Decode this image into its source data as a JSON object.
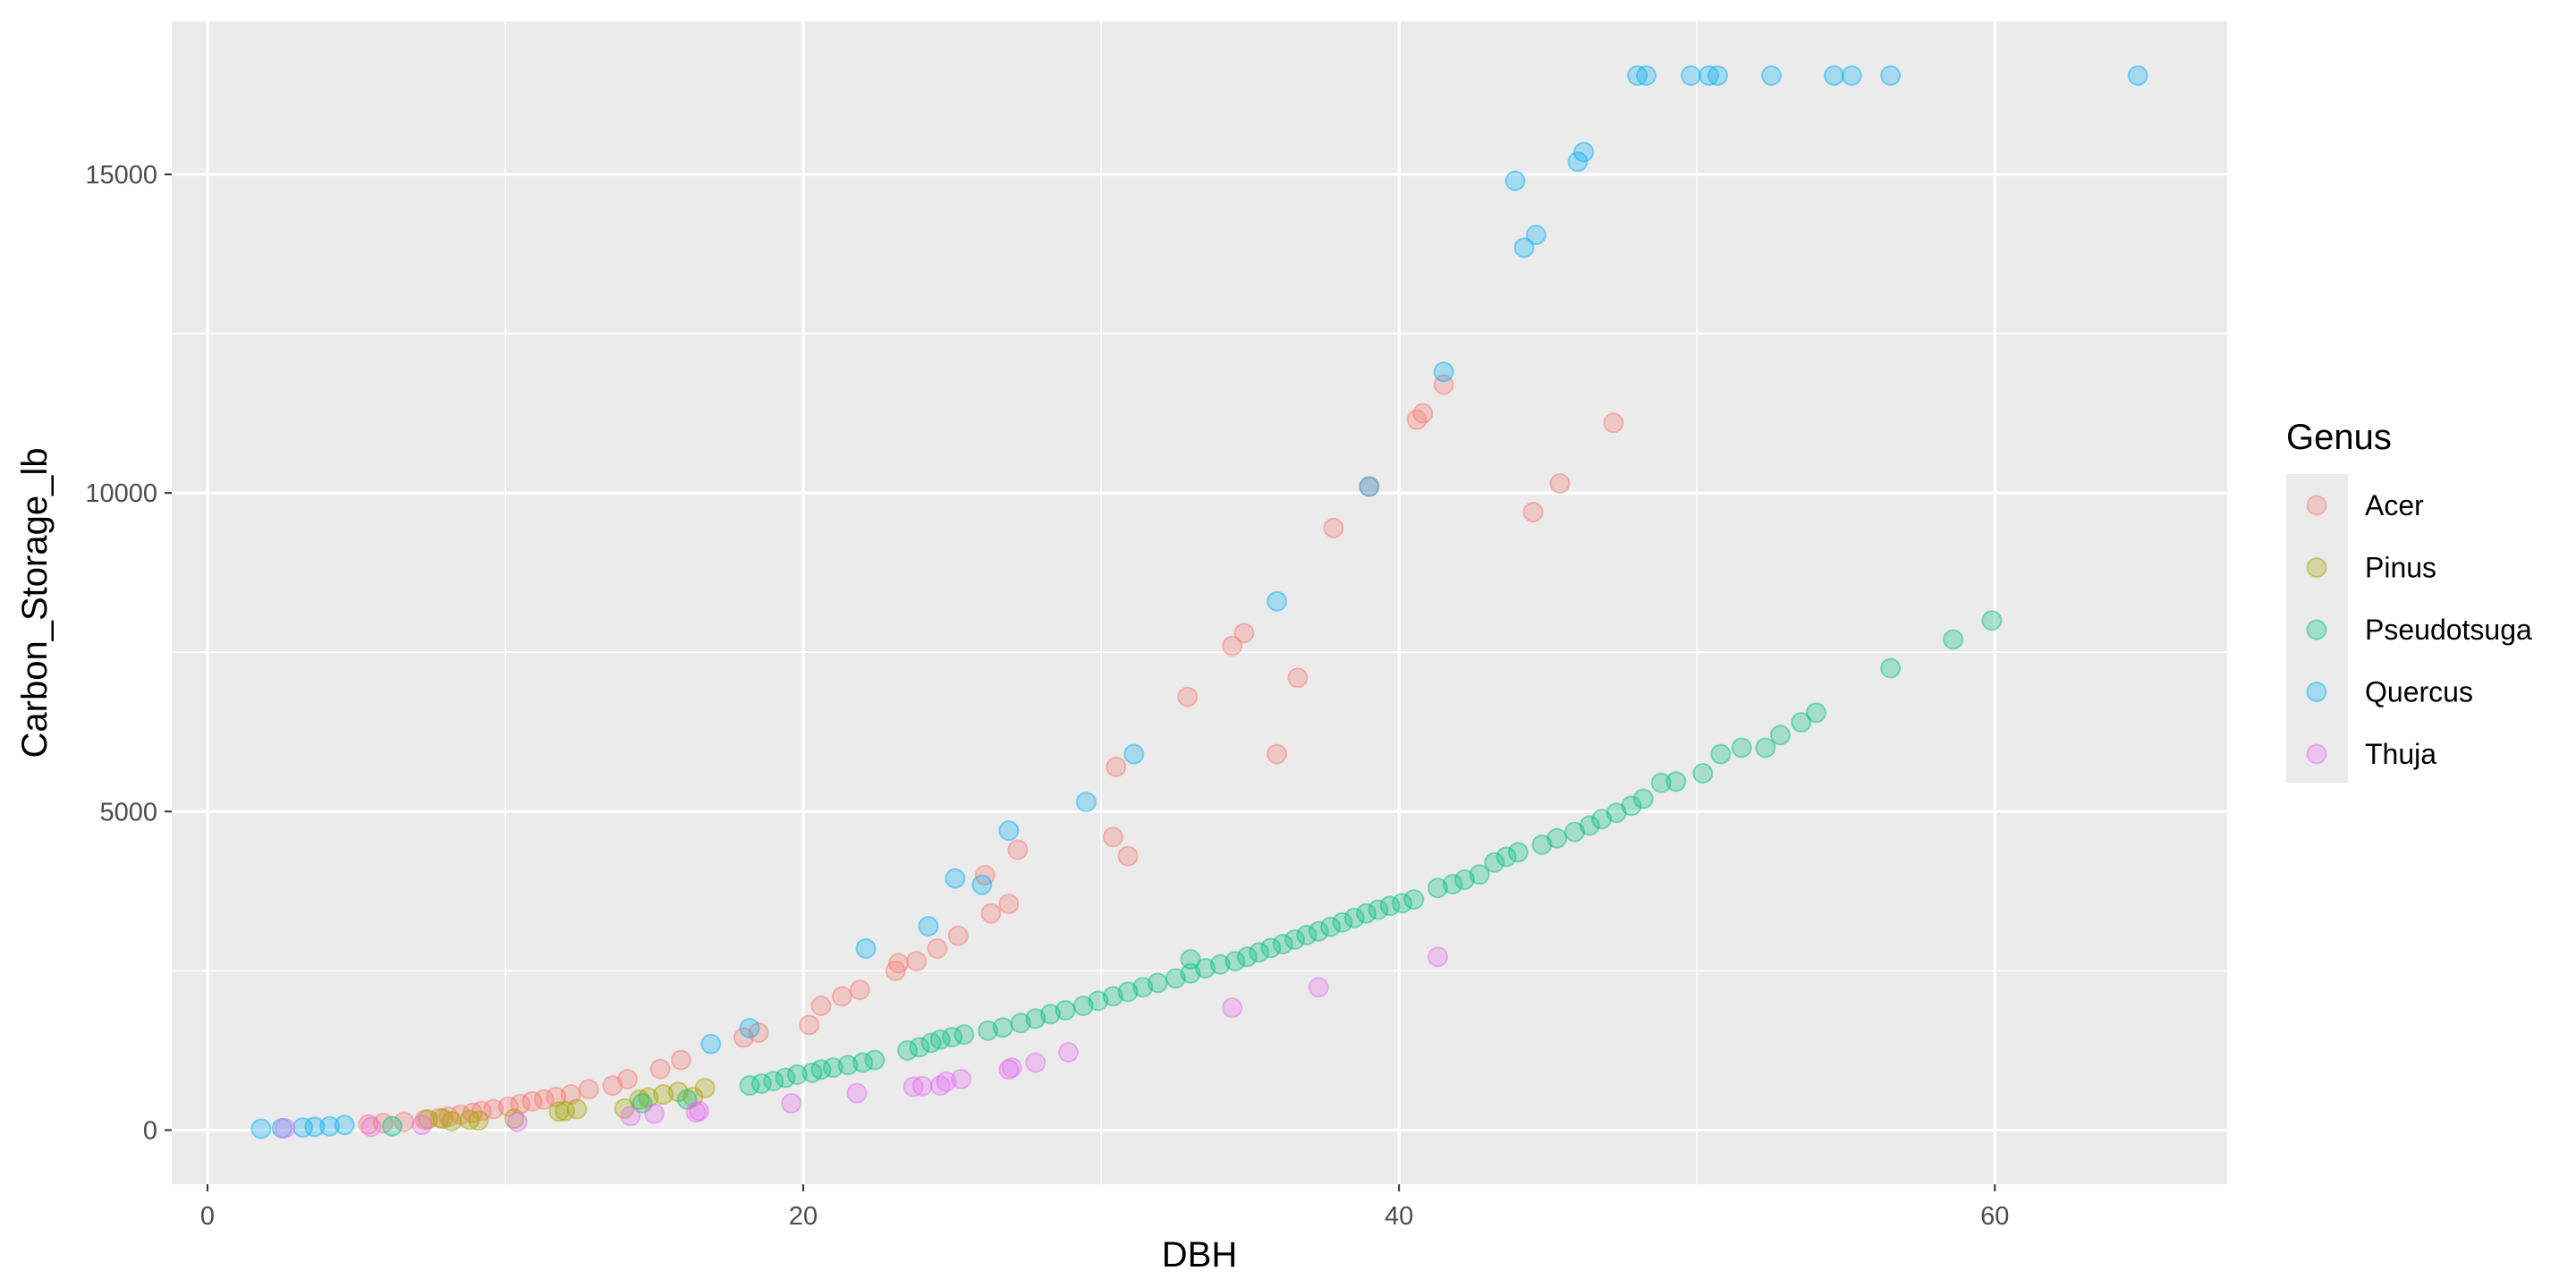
{
  "chart_data": {
    "type": "scatter",
    "xlabel": "DBH",
    "ylabel": "Carbon_Storage_lb",
    "xlim": [
      -1.2,
      67.8
    ],
    "ylim": [
      -850,
      17400
    ],
    "x_ticks": [
      0,
      20,
      40,
      60
    ],
    "y_ticks": [
      0,
      5000,
      10000,
      15000
    ],
    "x_tick_labels": [
      "0",
      "20",
      "40",
      "60"
    ],
    "y_tick_labels": [
      "0",
      "5000",
      "10000",
      "15000"
    ],
    "grid": true,
    "legend_position": "right",
    "legend_title": "Genus",
    "series": [
      {
        "name": "Acer",
        "color": "#F8766D",
        "points": [
          [
            5.4,
            90
          ],
          [
            5.9,
            110
          ],
          [
            6.6,
            130
          ],
          [
            7.3,
            160
          ],
          [
            7.8,
            190
          ],
          [
            8.1,
            210
          ],
          [
            8.5,
            240
          ],
          [
            8.9,
            270
          ],
          [
            9.2,
            300
          ],
          [
            9.6,
            330
          ],
          [
            10.1,
            370
          ],
          [
            10.5,
            410
          ],
          [
            10.9,
            450
          ],
          [
            11.3,
            480
          ],
          [
            11.7,
            520
          ],
          [
            12.2,
            560
          ],
          [
            12.8,
            640
          ],
          [
            13.6,
            700
          ],
          [
            14.1,
            800
          ],
          [
            15.2,
            960
          ],
          [
            15.9,
            1100
          ],
          [
            18.0,
            1450
          ],
          [
            18.5,
            1530
          ],
          [
            20.2,
            1650
          ],
          [
            20.6,
            1950
          ],
          [
            21.3,
            2100
          ],
          [
            21.9,
            2200
          ],
          [
            23.1,
            2500
          ],
          [
            23.2,
            2620
          ],
          [
            23.8,
            2650
          ],
          [
            24.5,
            2850
          ],
          [
            25.2,
            3050
          ],
          [
            26.3,
            3400
          ],
          [
            26.1,
            4000
          ],
          [
            26.9,
            3550
          ],
          [
            27.2,
            4400
          ],
          [
            30.4,
            4600
          ],
          [
            30.9,
            4300
          ],
          [
            30.5,
            5700
          ],
          [
            32.9,
            6800
          ],
          [
            34.4,
            7600
          ],
          [
            34.8,
            7800
          ],
          [
            35.9,
            5900
          ],
          [
            36.6,
            7100
          ],
          [
            37.8,
            9450
          ],
          [
            39.0,
            10100
          ],
          [
            40.6,
            11150
          ],
          [
            40.8,
            11250
          ],
          [
            41.5,
            11700
          ],
          [
            44.5,
            9700
          ],
          [
            45.4,
            10150
          ],
          [
            47.2,
            11100
          ]
        ]
      },
      {
        "name": "Pinus",
        "color": "#A3A500",
        "points": [
          [
            7.4,
            170
          ],
          [
            7.9,
            180
          ],
          [
            8.2,
            140
          ],
          [
            8.8,
            160
          ],
          [
            9.1,
            150
          ],
          [
            10.3,
            180
          ],
          [
            11.8,
            290
          ],
          [
            12.0,
            300
          ],
          [
            12.4,
            330
          ],
          [
            14.0,
            340
          ],
          [
            14.5,
            480
          ],
          [
            14.8,
            510
          ],
          [
            15.3,
            560
          ],
          [
            15.8,
            600
          ],
          [
            16.3,
            520
          ],
          [
            16.7,
            660
          ]
        ]
      },
      {
        "name": "Pseudotsuga",
        "color": "#00BF7D",
        "points": [
          [
            6.2,
            60
          ],
          [
            14.6,
            420
          ],
          [
            16.1,
            480
          ],
          [
            18.2,
            700
          ],
          [
            18.6,
            730
          ],
          [
            19.0,
            770
          ],
          [
            19.4,
            820
          ],
          [
            19.8,
            870
          ],
          [
            20.3,
            900
          ],
          [
            20.6,
            950
          ],
          [
            21.0,
            980
          ],
          [
            21.5,
            1020
          ],
          [
            22.0,
            1060
          ],
          [
            22.4,
            1100
          ],
          [
            23.5,
            1250
          ],
          [
            23.9,
            1300
          ],
          [
            24.3,
            1370
          ],
          [
            24.6,
            1420
          ],
          [
            25.0,
            1460
          ],
          [
            25.4,
            1500
          ],
          [
            26.2,
            1560
          ],
          [
            26.7,
            1610
          ],
          [
            27.3,
            1680
          ],
          [
            27.8,
            1750
          ],
          [
            28.3,
            1820
          ],
          [
            28.8,
            1880
          ],
          [
            29.4,
            1950
          ],
          [
            29.9,
            2030
          ],
          [
            30.4,
            2100
          ],
          [
            30.9,
            2170
          ],
          [
            31.4,
            2240
          ],
          [
            31.9,
            2310
          ],
          [
            32.5,
            2380
          ],
          [
            33.0,
            2460
          ],
          [
            33.5,
            2540
          ],
          [
            34.0,
            2600
          ],
          [
            34.5,
            2650
          ],
          [
            34.9,
            2720
          ],
          [
            35.3,
            2790
          ],
          [
            35.7,
            2860
          ],
          [
            36.1,
            2920
          ],
          [
            36.5,
            2990
          ],
          [
            36.9,
            3060
          ],
          [
            37.3,
            3120
          ],
          [
            37.7,
            3190
          ],
          [
            38.1,
            3260
          ],
          [
            38.5,
            3330
          ],
          [
            38.9,
            3400
          ],
          [
            39.3,
            3460
          ],
          [
            39.7,
            3520
          ],
          [
            40.1,
            3560
          ],
          [
            40.5,
            3620
          ],
          [
            41.3,
            3800
          ],
          [
            41.8,
            3860
          ],
          [
            42.2,
            3930
          ],
          [
            42.7,
            4010
          ],
          [
            43.2,
            4200
          ],
          [
            43.6,
            4290
          ],
          [
            44.0,
            4360
          ],
          [
            44.8,
            4480
          ],
          [
            45.3,
            4580
          ],
          [
            45.9,
            4680
          ],
          [
            46.4,
            4780
          ],
          [
            46.8,
            4880
          ],
          [
            47.3,
            4980
          ],
          [
            47.8,
            5090
          ],
          [
            48.2,
            5200
          ],
          [
            48.8,
            5450
          ],
          [
            49.3,
            5470
          ],
          [
            50.2,
            5600
          ],
          [
            50.8,
            5900
          ],
          [
            51.5,
            6000
          ],
          [
            52.3,
            6000
          ],
          [
            52.8,
            6200
          ],
          [
            53.5,
            6400
          ],
          [
            54.0,
            6550
          ],
          [
            56.5,
            7250
          ],
          [
            58.6,
            7700
          ],
          [
            59.9,
            8000
          ],
          [
            33.0,
            2680
          ]
        ]
      },
      {
        "name": "Quercus",
        "color": "#00B0F6",
        "points": [
          [
            1.8,
            20
          ],
          [
            2.5,
            30
          ],
          [
            3.2,
            40
          ],
          [
            3.6,
            50
          ],
          [
            4.1,
            60
          ],
          [
            4.6,
            80
          ],
          [
            16.9,
            1350
          ],
          [
            18.2,
            1600
          ],
          [
            22.1,
            2850
          ],
          [
            24.2,
            3200
          ],
          [
            25.1,
            3950
          ],
          [
            26.0,
            3850
          ],
          [
            26.9,
            4700
          ],
          [
            29.5,
            5150
          ],
          [
            31.1,
            5900
          ],
          [
            35.9,
            8300
          ],
          [
            39.0,
            10100
          ],
          [
            41.5,
            11900
          ],
          [
            43.9,
            14900
          ],
          [
            44.2,
            13850
          ],
          [
            44.6,
            14050
          ],
          [
            46.0,
            15200
          ],
          [
            46.2,
            15350
          ],
          [
            48.0,
            16550
          ],
          [
            48.3,
            16550
          ],
          [
            49.8,
            16550
          ],
          [
            50.4,
            16550
          ],
          [
            50.7,
            16550
          ],
          [
            52.5,
            16550
          ],
          [
            54.6,
            16550
          ],
          [
            55.2,
            16550
          ],
          [
            56.5,
            16550
          ],
          [
            64.8,
            16550
          ]
        ]
      },
      {
        "name": "Thuja",
        "color": "#E76BF3",
        "points": [
          [
            2.6,
            30
          ],
          [
            5.5,
            50
          ],
          [
            7.2,
            80
          ],
          [
            10.4,
            130
          ],
          [
            14.2,
            220
          ],
          [
            15.0,
            260
          ],
          [
            16.4,
            280
          ],
          [
            16.5,
            300
          ],
          [
            19.6,
            420
          ],
          [
            21.8,
            580
          ],
          [
            23.7,
            680
          ],
          [
            24.0,
            690
          ],
          [
            24.6,
            700
          ],
          [
            24.8,
            760
          ],
          [
            25.3,
            800
          ],
          [
            26.9,
            950
          ],
          [
            27.0,
            980
          ],
          [
            27.8,
            1060
          ],
          [
            28.9,
            1220
          ],
          [
            34.4,
            1920
          ],
          [
            37.3,
            2240
          ],
          [
            41.3,
            2720
          ]
        ]
      }
    ]
  }
}
